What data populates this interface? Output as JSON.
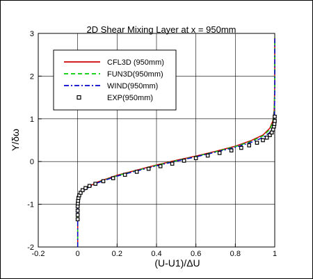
{
  "chart_data": {
    "type": "line",
    "title": "2D Shear Mixing Layer at x = 950mm",
    "xlabel": "(U-U1)/ΔU",
    "ylabel": "Y/δω",
    "xlim": [
      -0.2,
      1.0
    ],
    "ylim": [
      -2,
      3
    ],
    "xticks": [
      "-0.2",
      "0",
      "0.2",
      "0.4",
      "0.6",
      "0.8",
      "1"
    ],
    "yticks": [
      "-2",
      "-1",
      "0",
      "1",
      "2",
      "3"
    ],
    "grid": true,
    "legend_position": "top-left",
    "series": [
      {
        "name": "CFL3D (950mm)",
        "style": "solid",
        "color": "#cc0000",
        "x": [
          0.0,
          0.0,
          0.005,
          0.02,
          0.05,
          0.1,
          0.2,
          0.3,
          0.4,
          0.5,
          0.6,
          0.7,
          0.8,
          0.88,
          0.94,
          0.975,
          0.99,
          0.997,
          1.0,
          1.0
        ],
        "y": [
          -2.0,
          -1.1,
          -0.85,
          -0.7,
          -0.6,
          -0.48,
          -0.32,
          -0.2,
          -0.08,
          0.03,
          0.13,
          0.24,
          0.36,
          0.49,
          0.62,
          0.78,
          0.95,
          1.2,
          1.8,
          2.9
        ]
      },
      {
        "name": "FUN3D(950mm)",
        "style": "dashed",
        "color": "#00cc00",
        "x": [
          0.0,
          0.0,
          0.005,
          0.02,
          0.05,
          0.1,
          0.2,
          0.3,
          0.4,
          0.5,
          0.6,
          0.7,
          0.8,
          0.88,
          0.94,
          0.975,
          0.99,
          0.997,
          1.0,
          1.0
        ],
        "y": [
          -2.0,
          -1.1,
          -0.86,
          -0.71,
          -0.61,
          -0.49,
          -0.33,
          -0.21,
          -0.09,
          0.02,
          0.12,
          0.23,
          0.35,
          0.47,
          0.6,
          0.75,
          0.92,
          1.15,
          1.75,
          2.9
        ]
      },
      {
        "name": "WIND(950mm)",
        "style": "dashdot",
        "color": "#0000cc",
        "x": [
          0.0,
          0.0,
          0.005,
          0.02,
          0.05,
          0.1,
          0.2,
          0.3,
          0.4,
          0.5,
          0.6,
          0.7,
          0.8,
          0.88,
          0.94,
          0.975,
          0.99,
          0.997,
          1.0,
          1.0
        ],
        "y": [
          -2.0,
          -1.1,
          -0.87,
          -0.72,
          -0.62,
          -0.5,
          -0.34,
          -0.22,
          -0.1,
          0.01,
          0.11,
          0.22,
          0.33,
          0.45,
          0.56,
          0.68,
          0.82,
          1.0,
          1.5,
          2.9
        ]
      },
      {
        "name": "EXP(950mm)",
        "style": "markers",
        "color": "#000000",
        "x": [
          0.0,
          0.0,
          0.0,
          0.0,
          0.001,
          0.002,
          0.004,
          0.008,
          0.015,
          0.025,
          0.04,
          0.06,
          0.09,
          0.13,
          0.18,
          0.24,
          0.3,
          0.36,
          0.42,
          0.48,
          0.54,
          0.6,
          0.66,
          0.72,
          0.78,
          0.83,
          0.87,
          0.91,
          0.94,
          0.96,
          0.975,
          0.985,
          0.992,
          0.996,
          0.998,
          1.0,
          1.0
        ],
        "y": [
          -1.35,
          -1.25,
          -1.15,
          -1.05,
          -0.98,
          -0.92,
          -0.85,
          -0.79,
          -0.73,
          -0.67,
          -0.62,
          -0.57,
          -0.52,
          -0.46,
          -0.39,
          -0.31,
          -0.24,
          -0.17,
          -0.11,
          -0.05,
          0.02,
          0.08,
          0.14,
          0.2,
          0.26,
          0.32,
          0.38,
          0.44,
          0.5,
          0.56,
          0.62,
          0.68,
          0.75,
          0.82,
          0.88,
          0.95,
          1.05
        ]
      }
    ]
  }
}
